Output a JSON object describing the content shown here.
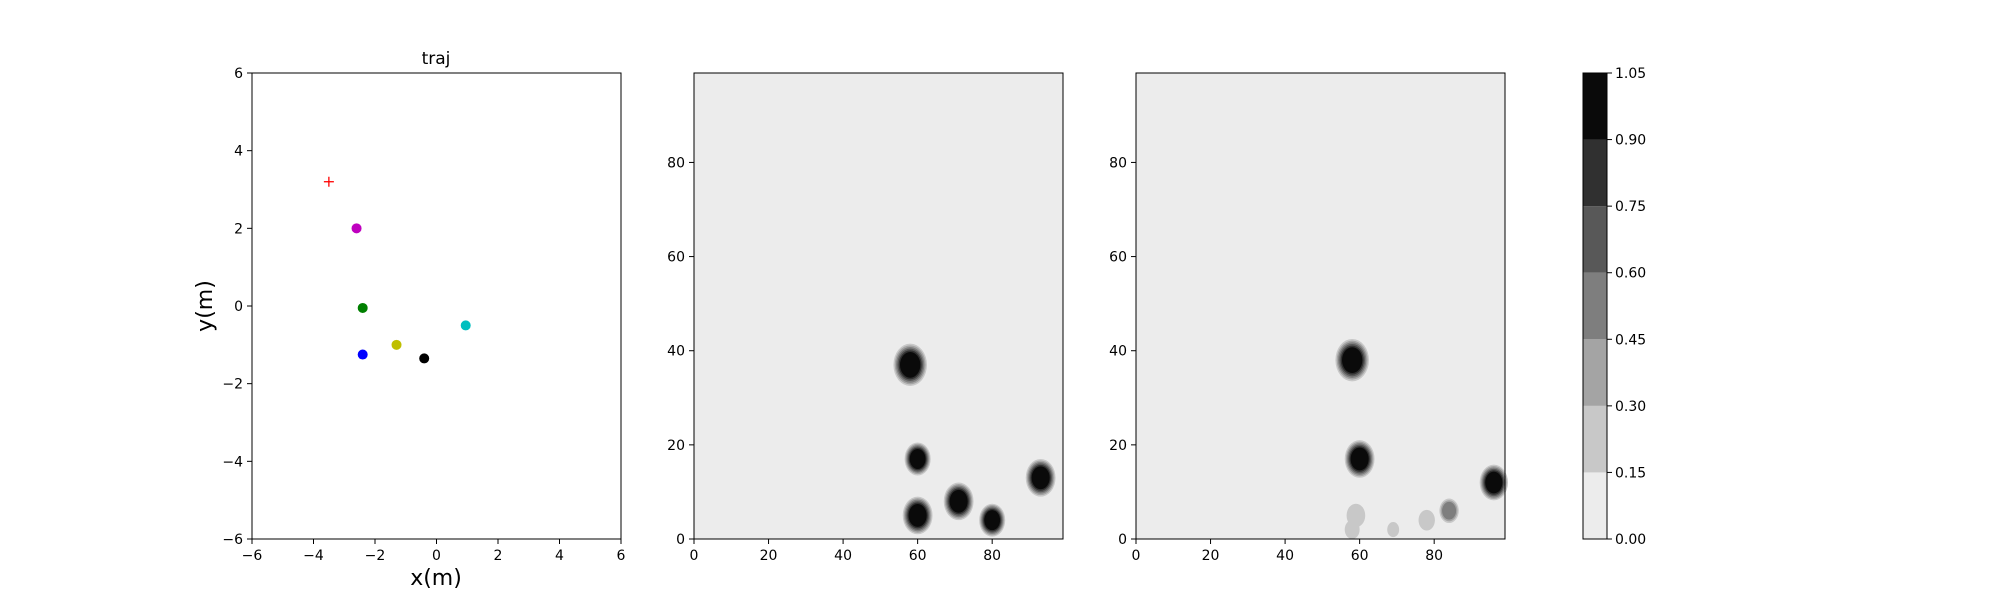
{
  "chart_data": [
    {
      "type": "scatter",
      "title": "traj",
      "xlabel": "x(m)",
      "ylabel": "y(m)",
      "xlim": [
        -6,
        6
      ],
      "ylim": [
        -6,
        6
      ],
      "x_ticks": [
        "−6",
        "−4",
        "−2",
        "0",
        "2",
        "4",
        "6"
      ],
      "y_ticks": [
        "−6",
        "−4",
        "−2",
        "0",
        "2",
        "4",
        "6"
      ],
      "grid": false,
      "points": [
        {
          "x": -2.6,
          "y": 2.0,
          "color": "#bf00bf"
        },
        {
          "x": -2.4,
          "y": -0.05,
          "color": "#007f00"
        },
        {
          "x": -2.4,
          "y": -1.25,
          "color": "#0000ff"
        },
        {
          "x": -1.3,
          "y": -1.0,
          "color": "#bfbf00"
        },
        {
          "x": -0.4,
          "y": -1.35,
          "color": "#000000"
        },
        {
          "x": 0.95,
          "y": -0.5,
          "color": "#00bfbf"
        }
      ],
      "goal": {
        "x": -3.5,
        "y": 3.2,
        "color": "#ff0000",
        "marker": "+"
      }
    },
    {
      "type": "heatmap",
      "title": "",
      "xlim": [
        0,
        99
      ],
      "ylim": [
        0,
        99
      ],
      "x_ticks": [
        "0",
        "20",
        "40",
        "60",
        "80"
      ],
      "y_ticks": [
        "0",
        "20",
        "40",
        "60",
        "80"
      ],
      "blobs": [
        {
          "x": 58,
          "y": 37,
          "r": 4.5,
          "value": 1.0
        },
        {
          "x": 60,
          "y": 17,
          "r": 3.5,
          "value": 1.0
        },
        {
          "x": 60,
          "y": 5,
          "r": 4.0,
          "value": 1.0
        },
        {
          "x": 71,
          "y": 8,
          "r": 4.0,
          "value": 1.0
        },
        {
          "x": 80,
          "y": 4,
          "r": 3.5,
          "value": 1.0
        },
        {
          "x": 93,
          "y": 13,
          "r": 4.0,
          "value": 1.0
        }
      ]
    },
    {
      "type": "heatmap",
      "title": "",
      "xlim": [
        0,
        99
      ],
      "ylim": [
        0,
        99
      ],
      "x_ticks": [
        "0",
        "20",
        "40",
        "60",
        "80"
      ],
      "y_ticks": [
        "0",
        "20",
        "40",
        "60",
        "80"
      ],
      "blobs": [
        {
          "x": 58,
          "y": 38,
          "r": 4.5,
          "value": 1.0
        },
        {
          "x": 60,
          "y": 17,
          "r": 4.0,
          "value": 1.0
        },
        {
          "x": 96,
          "y": 12,
          "r": 3.8,
          "value": 1.0
        },
        {
          "x": 59,
          "y": 5,
          "r": 2.5,
          "value": 0.2
        },
        {
          "x": 58,
          "y": 2,
          "r": 2.0,
          "value": 0.18
        },
        {
          "x": 69,
          "y": 2,
          "r": 1.6,
          "value": 0.15
        },
        {
          "x": 78,
          "y": 4,
          "r": 2.2,
          "value": 0.22
        },
        {
          "x": 84,
          "y": 6,
          "r": 2.6,
          "value": 0.45
        }
      ]
    }
  ],
  "colorbar": {
    "levels": [
      "0.00",
      "0.15",
      "0.30",
      "0.45",
      "0.60",
      "0.75",
      "0.90",
      "1.05"
    ],
    "colors": [
      "#ececec",
      "#c8c8c8",
      "#a4a4a4",
      "#7e7e7e",
      "#585858",
      "#303030",
      "#0a0a0a"
    ]
  }
}
